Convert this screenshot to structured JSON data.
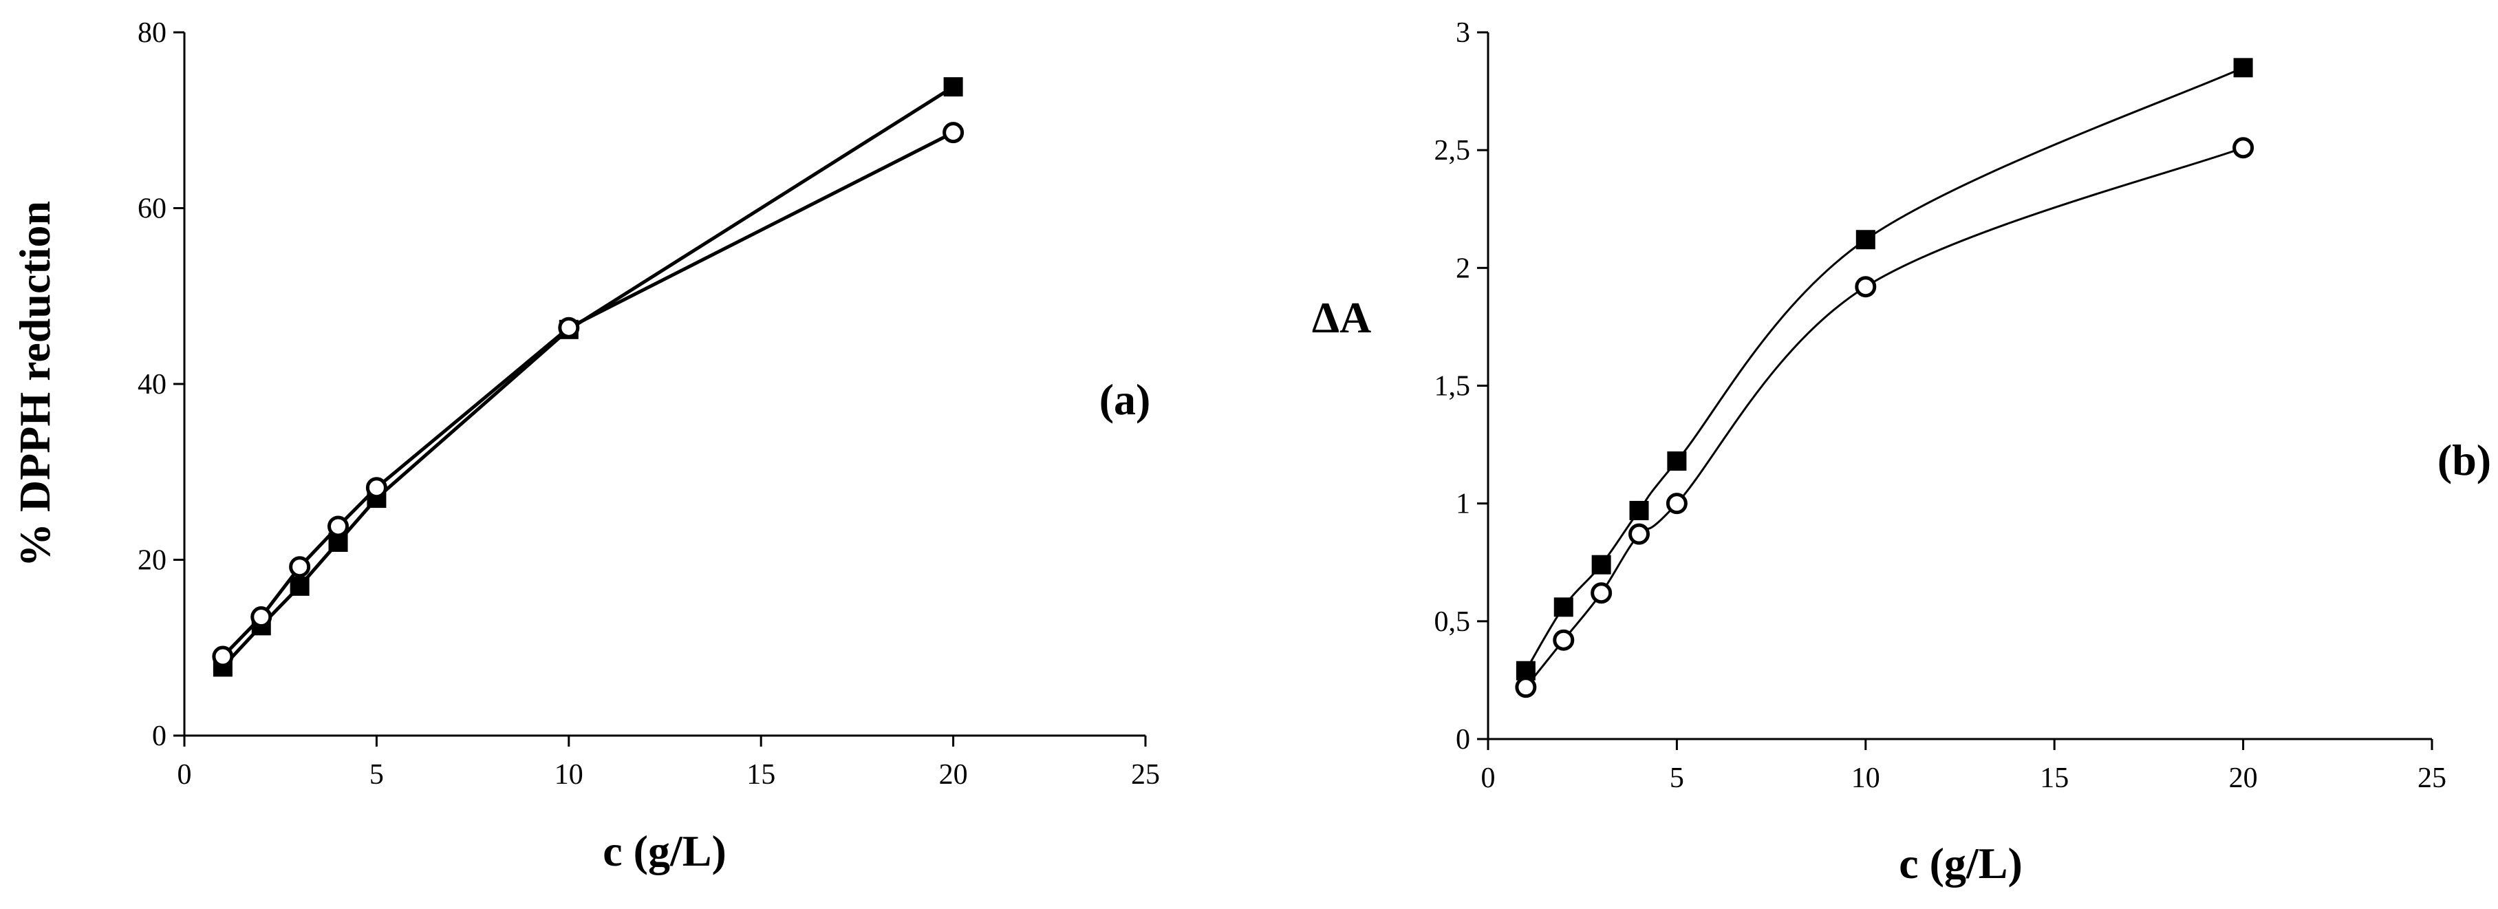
{
  "chart_data": [
    {
      "type": "line",
      "panel_label": "(a)",
      "xlabel": "c (g/L)",
      "ylabel": "% DPPH reduction",
      "xlim": [
        0,
        25
      ],
      "ylim": [
        0,
        80
      ],
      "xticks": [
        0,
        5,
        10,
        15,
        20,
        25
      ],
      "yticks": [
        0,
        20,
        40,
        60,
        80
      ],
      "xtick_labels": [
        "0",
        "5",
        "10",
        "15",
        "20",
        "25"
      ],
      "ytick_labels": [
        "0",
        "20",
        "40",
        "60",
        "80"
      ],
      "smooth": false,
      "series": [
        {
          "marker": "square-filled",
          "x": [
            1,
            2,
            3,
            4,
            5,
            10,
            20
          ],
          "values": [
            7.8,
            12.5,
            17,
            22,
            27,
            46.2,
            73.8
          ]
        },
        {
          "marker": "circle-open",
          "x": [
            1,
            2,
            3,
            4,
            5,
            10,
            20
          ],
          "values": [
            9,
            13.5,
            19.2,
            23.8,
            28.2,
            46.4,
            68.6
          ]
        }
      ]
    },
    {
      "type": "line",
      "panel_label": "(b)",
      "xlabel": "c (g/L)",
      "ylabel": "ΔA",
      "xlim": [
        0,
        25
      ],
      "ylim": [
        0,
        3
      ],
      "xticks": [
        0,
        5,
        10,
        15,
        20,
        25
      ],
      "yticks": [
        0,
        0.5,
        1,
        1.5,
        2,
        2.5,
        3
      ],
      "xtick_labels": [
        "0",
        "5",
        "10",
        "15",
        "20",
        "25"
      ],
      "ytick_labels": [
        "0",
        "0,5",
        "1",
        "1,5",
        "2",
        "2,5",
        "3"
      ],
      "smooth": true,
      "series": [
        {
          "marker": "square-filled",
          "x": [
            1,
            2,
            3,
            4,
            5,
            10,
            20
          ],
          "values": [
            0.29,
            0.56,
            0.74,
            0.97,
            1.18,
            2.12,
            2.85
          ]
        },
        {
          "marker": "circle-open",
          "x": [
            1,
            2,
            3,
            4,
            5,
            10,
            20
          ],
          "values": [
            0.22,
            0.42,
            0.62,
            0.87,
            1.0,
            1.92,
            2.51
          ]
        }
      ]
    }
  ]
}
